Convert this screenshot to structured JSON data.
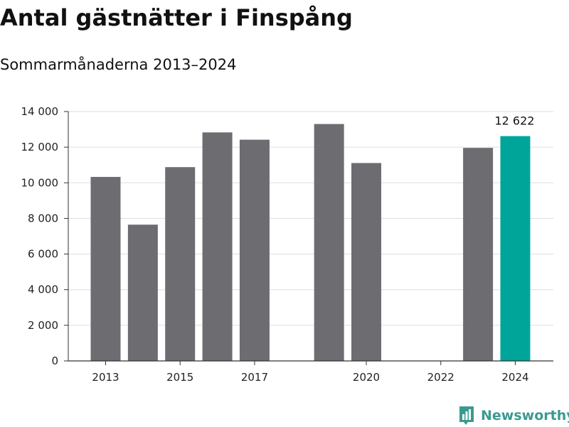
{
  "header": {
    "title": "Antal gästnätter i Finspång",
    "subtitle": "Sommarmånaderna 2013–2024"
  },
  "brand": {
    "name": "Newsworthy",
    "color": "#3b9a8f",
    "logo_icon": "bar-chart-badge-icon"
  },
  "chart_data": {
    "type": "bar",
    "title": "Antal gästnätter i Finspång",
    "subtitle": "Sommarmånaderna 2013–2024",
    "xlabel": "",
    "ylabel": "",
    "categories": [
      2013,
      2014,
      2015,
      2016,
      2017,
      2018,
      2019,
      2020,
      2021,
      2022,
      2023,
      2024
    ],
    "values": [
      10330,
      7650,
      10880,
      12830,
      12420,
      null,
      13300,
      11110,
      null,
      null,
      11960,
      12622
    ],
    "x_tick_labels": [
      "2013",
      "2015",
      "2017",
      "2020",
      "2022",
      "2024"
    ],
    "y_ticks": [
      0,
      2000,
      4000,
      6000,
      8000,
      10000,
      12000,
      14000
    ],
    "y_tick_labels": [
      "0",
      "2 000",
      "4 000",
      "6 000",
      "8 000",
      "10 000",
      "12 000",
      "14 000"
    ],
    "ylim": [
      0,
      14000
    ],
    "grid": true,
    "legend": "none",
    "bar_color": "#6d6c71",
    "highlight_color": "#00a599",
    "highlight_index": 11,
    "annotations": [
      {
        "category": 2024,
        "text": "12 622"
      }
    ]
  }
}
